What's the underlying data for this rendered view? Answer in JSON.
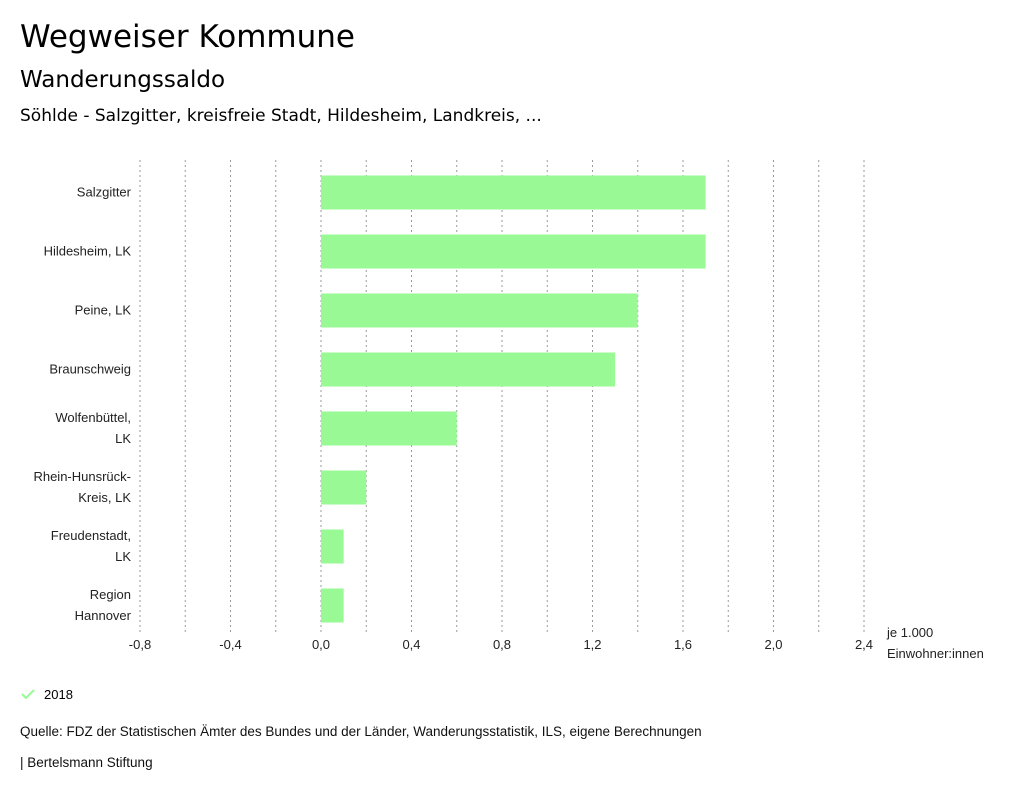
{
  "header": {
    "title": "Wegweiser Kommune",
    "subtitle": "Wanderungssaldo",
    "subsubtitle": "Söhlde - Salzgitter, kreisfreie Stadt, Hildesheim, Landkreis, ..."
  },
  "chart_data": {
    "type": "bar",
    "orientation": "horizontal",
    "categories": [
      [
        "Salzgitter"
      ],
      [
        "Hildesheim, LK"
      ],
      [
        "Peine, LK"
      ],
      [
        "Braunschweig"
      ],
      [
        "Wolfenbüttel,",
        "LK"
      ],
      [
        "Rhein-Hunsrück-",
        "Kreis, LK"
      ],
      [
        "Freudenstadt,",
        "LK"
      ],
      [
        "Region",
        "Hannover"
      ]
    ],
    "series": [
      {
        "name": "2018",
        "values": [
          1.7,
          1.7,
          1.4,
          1.3,
          0.6,
          0.2,
          0.1,
          0.1
        ]
      }
    ],
    "xlim": [
      -0.8,
      2.4
    ],
    "xticks": [
      -0.8,
      -0.4,
      0.0,
      0.4,
      0.8,
      1.2,
      1.6,
      2.0,
      2.4
    ],
    "xtick_labels": [
      "-0,8",
      "-0,4",
      "0,0",
      "0,4",
      "0,8",
      "1,2",
      "1,6",
      "2,0",
      "2,4"
    ],
    "minor_grid": true,
    "unit_label": [
      "je 1.000",
      "Einwohner:innen"
    ],
    "bar_color": "#99f994",
    "grid_color": "#9a9a9a"
  },
  "legend": {
    "label": "2018",
    "icon": "check-icon",
    "color": "#99f994"
  },
  "footer": {
    "source": "Quelle: FDZ der Statistischen Ämter des Bundes und der Länder, Wanderungsstatistik, ILS, eigene Berechnungen",
    "credit": "| Bertelsmann Stiftung"
  }
}
